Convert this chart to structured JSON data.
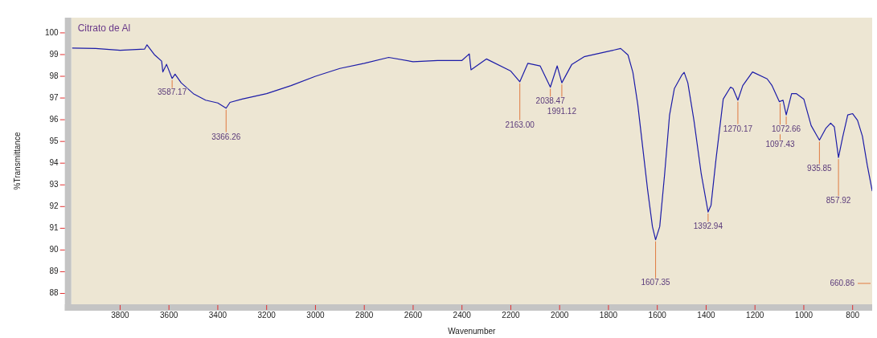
{
  "chart_data": {
    "type": "line",
    "title": "Citrato de Al",
    "xlabel": "Wavenumber",
    "ylabel": "%Transmittance",
    "xlim": [
      4000,
      720
    ],
    "ylim": [
      87.5,
      100.7
    ],
    "xticks": [
      3800,
      3600,
      3400,
      3200,
      3000,
      2800,
      2600,
      2400,
      2200,
      2000,
      1800,
      1600,
      1400,
      1200,
      1000,
      800
    ],
    "yticks": [
      88,
      89,
      90,
      91,
      92,
      93,
      94,
      95,
      96,
      97,
      98,
      99,
      100
    ],
    "grid": false,
    "legend": false,
    "marker": "none",
    "line_style": "solid",
    "series": [
      {
        "color": "#1c1ca8",
        "x": [
          3995,
          3900,
          3800,
          3700,
          3690,
          3660,
          3630,
          3625,
          3610,
          3587,
          3575,
          3550,
          3500,
          3450,
          3400,
          3366,
          3350,
          3300,
          3200,
          3100,
          3000,
          2900,
          2800,
          2700,
          2600,
          2500,
          2400,
          2370,
          2363,
          2300,
          2200,
          2163,
          2130,
          2080,
          2038,
          2010,
          1991,
          1950,
          1900,
          1800,
          1750,
          1720,
          1700,
          1680,
          1660,
          1640,
          1620,
          1607,
          1590,
          1570,
          1550,
          1530,
          1500,
          1490,
          1475,
          1450,
          1420,
          1392,
          1380,
          1360,
          1330,
          1300,
          1290,
          1270,
          1250,
          1210,
          1150,
          1130,
          1100,
          1085,
          1072,
          1050,
          1030,
          1000,
          970,
          936,
          910,
          890,
          875,
          858,
          840,
          820,
          800,
          780,
          760,
          740,
          720
        ],
        "values": [
          99.3,
          99.28,
          99.2,
          99.25,
          99.45,
          99.0,
          98.7,
          98.2,
          98.55,
          97.9,
          98.1,
          97.7,
          97.2,
          96.9,
          96.77,
          96.53,
          96.8,
          96.95,
          97.2,
          97.57,
          98.0,
          98.36,
          98.6,
          98.87,
          98.67,
          98.73,
          98.73,
          99.03,
          98.3,
          98.8,
          98.24,
          97.75,
          98.6,
          98.48,
          97.5,
          98.48,
          97.7,
          98.55,
          98.9,
          99.15,
          99.28,
          98.98,
          98.18,
          96.7,
          94.75,
          92.8,
          91.08,
          90.47,
          91.08,
          93.5,
          96.2,
          97.44,
          98.05,
          98.18,
          97.7,
          95.97,
          93.5,
          91.75,
          92.06,
          94.14,
          96.95,
          97.5,
          97.44,
          96.9,
          97.57,
          98.2,
          97.88,
          97.57,
          96.83,
          96.9,
          96.22,
          97.2,
          97.2,
          96.95,
          95.73,
          95.06,
          95.6,
          95.84,
          95.67,
          94.26,
          95.24,
          96.22,
          96.28,
          95.97,
          95.24,
          93.9,
          92.73
        ]
      }
    ],
    "annotations": [
      {
        "text": "3587.17",
        "x": 3587,
        "y": 97.9
      },
      {
        "text": "3366.26",
        "x": 3366,
        "y": 96.53
      },
      {
        "text": "2163.00",
        "x": 2163,
        "y": 97.75
      },
      {
        "text": "2038.47",
        "x": 2038,
        "y": 97.5
      },
      {
        "text": "1991.12",
        "x": 1991,
        "y": 97.7
      },
      {
        "text": "1607.35",
        "x": 1607,
        "y": 90.47
      },
      {
        "text": "1392.94",
        "x": 1392,
        "y": 91.75
      },
      {
        "text": "1270.17",
        "x": 1270,
        "y": 96.9
      },
      {
        "text": "1097.43",
        "x": 1097,
        "y": 96.83
      },
      {
        "text": "1072.66",
        "x": 1072,
        "y": 96.22
      },
      {
        "text": "935.85",
        "x": 936,
        "y": 95.06
      },
      {
        "text": "857.92",
        "x": 858,
        "y": 94.26
      },
      "660.86"
    ]
  }
}
